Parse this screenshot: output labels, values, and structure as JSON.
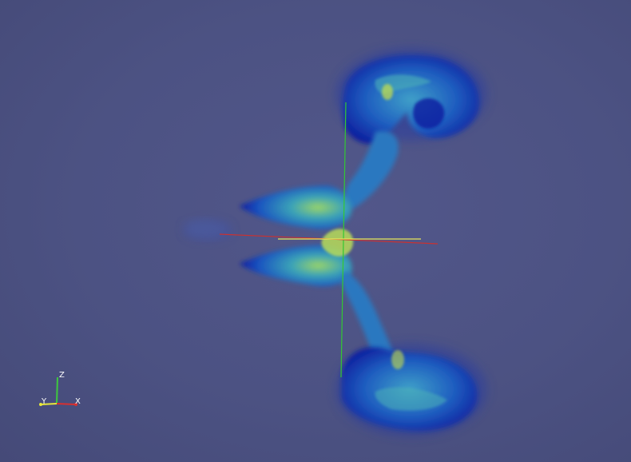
{
  "view": {
    "background": "#4b5080",
    "colormap": [
      "#0a1aa0",
      "#1f62c8",
      "#3fa0c8",
      "#8fd060",
      "#d8e860"
    ]
  },
  "orientation_axes": {
    "z_label": "Z",
    "y_label": "Y",
    "x_label": "X",
    "z_color": "#3ec83e",
    "y_color": "#e8e83a",
    "x_color": "#d83030"
  },
  "center_axes": {
    "x_color": "#c83232",
    "y_color": "#e8e85a",
    "z_color": "#32c832"
  },
  "icons": [
    "orientation-axes-icon",
    "center-axes-icon"
  ]
}
